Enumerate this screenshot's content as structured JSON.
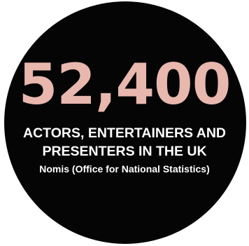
{
  "stat": {
    "value": "52,400",
    "description_line1": "ACTORS, ENTERTAINERS AND",
    "description_line2": "PRESENTERS IN THE UK",
    "source": "Nomis (Office for National Statistics)"
  },
  "colors": {
    "background": "#ffffff",
    "circle": "#050505",
    "number": "#e8b7ae",
    "text": "#ffffff"
  }
}
